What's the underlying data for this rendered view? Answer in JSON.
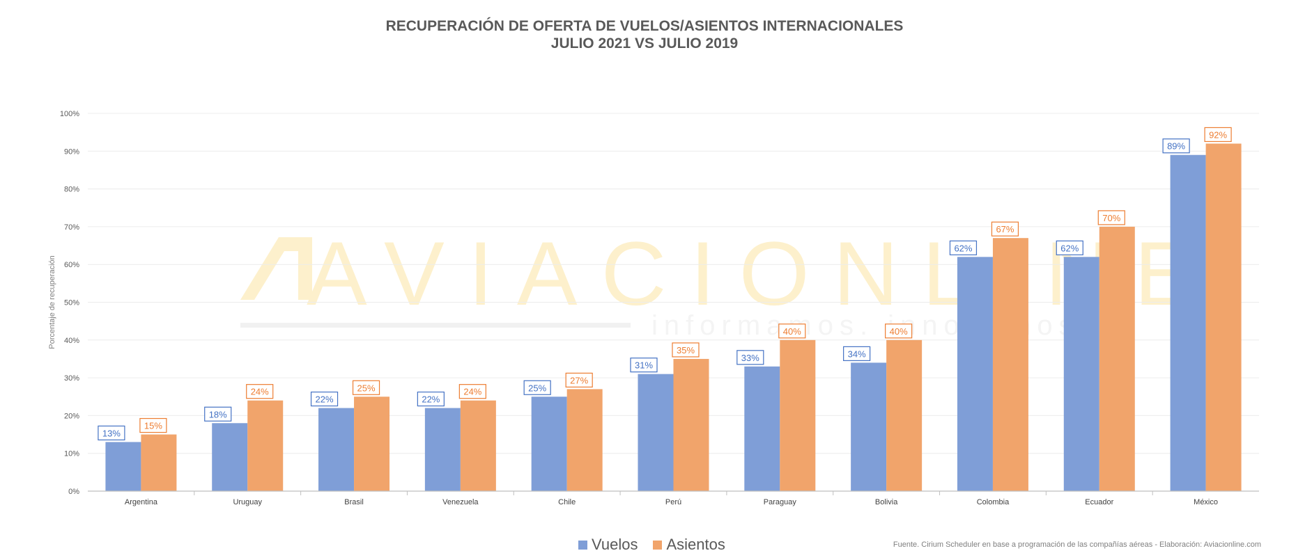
{
  "title": {
    "line1": "RECUPERACIÓN DE OFERTA DE VUELOS/ASIENTOS INTERNACIONALES",
    "line2": "JULIO 2021 VS JULIO 2019"
  },
  "watermark": {
    "brand": "AVIACIONLINE",
    "tagline": "informamos. innovamos."
  },
  "source": "Fuente. Cirium Scheduler en base a programación de las compañías aéreas - Elaboración: Aviacionline.com",
  "colors": {
    "vuelos": "#7f9ed7",
    "asientos": "#f1a46b",
    "vuelos_label": "#4472c4",
    "asientos_label": "#ed7d31"
  },
  "chart_data": {
    "type": "bar",
    "title": "RECUPERACIÓN DE OFERTA DE VUELOS/ASIENTOS INTERNACIONALES JULIO 2021 VS JULIO 2019",
    "xlabel": "",
    "ylabel": "Porcentaje de recuperación",
    "ylim": [
      0,
      100
    ],
    "yticks": [
      "0%",
      "10%",
      "20%",
      "30%",
      "40%",
      "50%",
      "60%",
      "70%",
      "80%",
      "90%",
      "100%"
    ],
    "grid": true,
    "legend_position": "bottom",
    "categories": [
      "Argentina",
      "Uruguay",
      "Brasil",
      "Venezuela",
      "Chile",
      "Perú",
      "Paraguay",
      "Bolivia",
      "Colombia",
      "Ecuador",
      "México"
    ],
    "series": [
      {
        "name": "Vuelos",
        "values": [
          13,
          18,
          22,
          22,
          25,
          31,
          33,
          34,
          62,
          62,
          89
        ],
        "labels": [
          "13%",
          "18%",
          "22%",
          "22%",
          "25%",
          "31%",
          "33%",
          "34%",
          "62%",
          "62%",
          "89%"
        ]
      },
      {
        "name": "Asientos",
        "values": [
          15,
          24,
          25,
          24,
          27,
          35,
          40,
          40,
          67,
          70,
          92
        ],
        "labels": [
          "15%",
          "24%",
          "25%",
          "24%",
          "27%",
          "35%",
          "40%",
          "40%",
          "67%",
          "70%",
          "92%"
        ]
      }
    ]
  }
}
